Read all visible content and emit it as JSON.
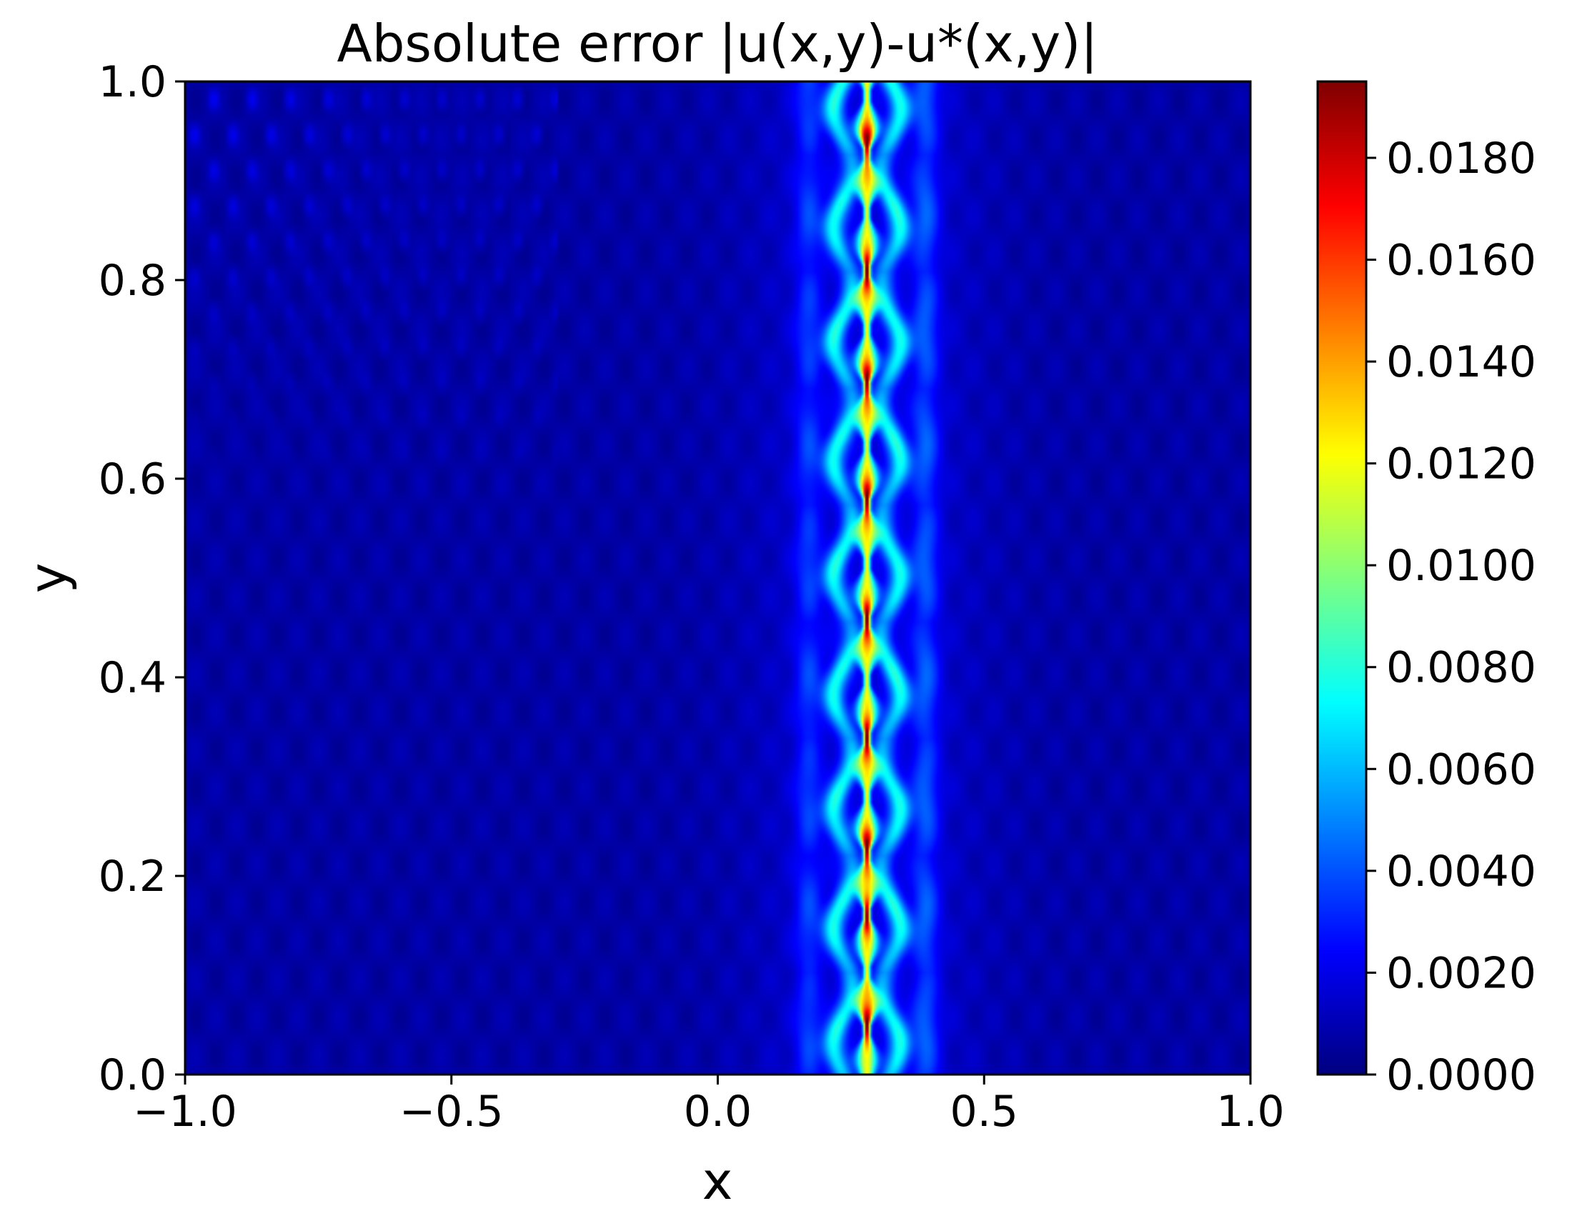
{
  "chart_data": {
    "type": "heatmap",
    "title": "Absolute error |u(x,y)-u*(x,y)|",
    "xlabel": "x",
    "ylabel": "y",
    "xlim": [
      -1.0,
      1.0
    ],
    "ylim": [
      0.0,
      1.0
    ],
    "xticks": [
      -1.0,
      -0.5,
      0.0,
      0.5,
      1.0
    ],
    "xtick_labels": [
      "−1.0",
      "−0.5",
      "0.0",
      "0.5",
      "1.0"
    ],
    "yticks": [
      0.0,
      0.2,
      0.4,
      0.6,
      0.8,
      1.0
    ],
    "ytick_labels": [
      "0.0",
      "0.2",
      "0.4",
      "0.6",
      "0.8",
      "1.0"
    ],
    "colormap": "jet",
    "colorbar": {
      "vmin": 0.0,
      "vmax": 0.0195,
      "ticks": [
        0.0,
        0.002,
        0.004,
        0.006,
        0.008,
        0.01,
        0.012,
        0.014,
        0.016,
        0.018
      ],
      "tick_labels": [
        "0.0000",
        "0.0020",
        "0.0040",
        "0.0060",
        "0.0080",
        "0.0100",
        "0.0120",
        "0.0140",
        "0.0160",
        "0.0180"
      ]
    },
    "features": {
      "ridge_center_x": 0.28,
      "ridge_peak_value": 0.0185,
      "ridge_core_halfwidth_x": 0.02,
      "halo_halfwidth_x": 0.09,
      "halo_value": 0.006,
      "background_value": 0.0007,
      "bright_spot_y": [
        0.05,
        0.16,
        0.23,
        0.34,
        0.46,
        0.58,
        0.7,
        0.81,
        0.94
      ]
    }
  }
}
